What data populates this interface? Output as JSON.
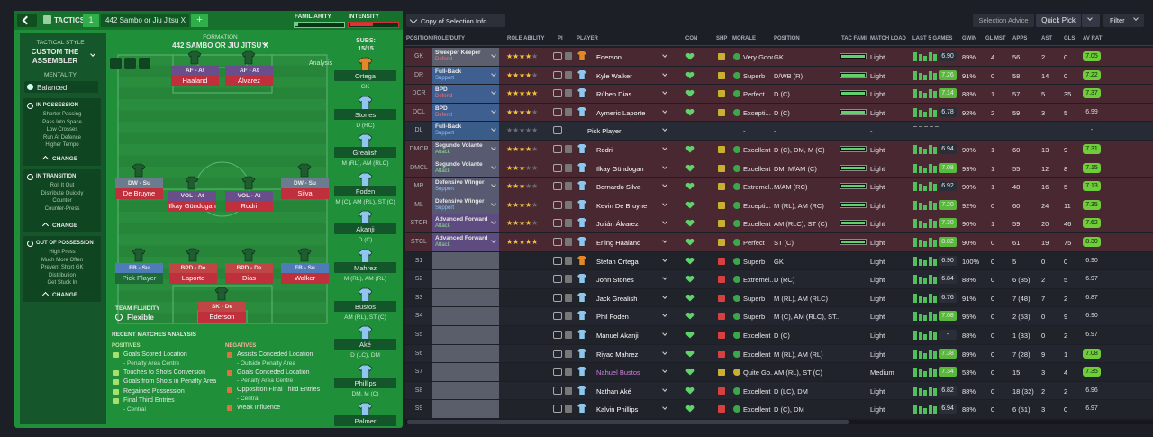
{
  "left_panel": {
    "top_bar": {
      "tab": "TACTICS",
      "slot": "1",
      "tactic_name": "442 Sambo or Jiu Jitsu X",
      "add": "+",
      "familiarity": "FAMILIARITY",
      "intensity": "INTENSITY"
    },
    "sidebar": {
      "style_label": "TACTICAL STYLE",
      "style_name": "CUSTOM THE ASSEMBLER",
      "mentality_label": "MENTALITY",
      "mentality": "Balanced",
      "sections": [
        {
          "title": "IN POSSESSION",
          "items": [
            "Shorter Passing",
            "Pass Into Space",
            "Low Crosses",
            "Run At Defence",
            "Higher Tempo"
          ],
          "button": "CHANGE"
        },
        {
          "title": "IN TRANSITION",
          "items": [
            "Roll It Out",
            "Distribute Quickly",
            "Counter",
            "Counter-Press"
          ],
          "button": "CHANGE"
        },
        {
          "title": "OUT OF POSSESSION",
          "items": [
            "High Press",
            "Much More Often",
            "Prevent Short GK",
            "Distribution",
            "Get Stuck In"
          ],
          "button": "CHANGE"
        }
      ]
    },
    "pitch": {
      "formation_label": "FORMATION",
      "formation": "442 SAMBO OR JIU JITSU X",
      "analysis": "Analysis",
      "players": [
        {
          "role": "AF - At",
          "name": "Haaland"
        },
        {
          "role": "AF - At",
          "name": "Álvarez"
        },
        {
          "role": "DW - Su",
          "name": "De Bruyne"
        },
        {
          "role": "VOL - At",
          "name": "Ilkay Gündogan"
        },
        {
          "role": "VOL - At",
          "name": "Rodri"
        },
        {
          "role": "DW - Su",
          "name": "Silva"
        },
        {
          "role": "FB - Su",
          "name": "Pick Player"
        },
        {
          "role": "BPD - De",
          "name": "Laporte"
        },
        {
          "role": "BPD - De",
          "name": "Dias"
        },
        {
          "role": "FB - Su",
          "name": "Walker"
        },
        {
          "role": "SK - De",
          "name": "Ederson"
        }
      ],
      "fluidity_label": "TEAM FLUIDITY",
      "fluidity": "Flexible"
    },
    "subs": {
      "label": "SUBS:",
      "count": "15/15",
      "players": [
        {
          "name": "Ortega",
          "position": "GK"
        },
        {
          "name": "Stones",
          "position": "D (RC)"
        },
        {
          "name": "Grealish",
          "position": "M (RL), AM (RLC)"
        },
        {
          "name": "Foden",
          "position": "M (C), AM (RL), ST (C)"
        },
        {
          "name": "Akanji",
          "position": "D (C)"
        },
        {
          "name": "Mahrez",
          "position": "M (RL), AM (RL)"
        },
        {
          "name": "Bustos",
          "position": "AM (RL), ST (C)"
        },
        {
          "name": "Aké",
          "position": "D (LC), DM"
        },
        {
          "name": "Phillips",
          "position": "DM, M (C)"
        },
        {
          "name": "Palmer"
        }
      ]
    },
    "analysis": {
      "title": "RECENT MATCHES ANALYSIS",
      "positives_label": "POSITIVES",
      "negatives_label": "NEGATIVES",
      "positives": [
        {
          "text": "Goals Scored Location",
          "detail": "- Penalty Area Centre"
        },
        {
          "text": "Touches to Shots Conversion"
        },
        {
          "text": "Goals from Shots in Penalty Area"
        },
        {
          "text": "Regained Possession"
        },
        {
          "text": "Final Third Entries",
          "detail": "- Central"
        }
      ],
      "negatives": [
        {
          "text": "Assists Conceded Location",
          "detail": "- Outside Penalty Area"
        },
        {
          "text": "Goals Conceded Location",
          "detail": "- Penalty Area Centre"
        },
        {
          "text": "Opposition Final Third Entries",
          "detail": "- Central"
        },
        {
          "text": "Weak Influence"
        }
      ]
    }
  },
  "selection": {
    "view": "Copy of Selection Info",
    "advice": "Selection Advice",
    "quick_pick": "Quick Pick",
    "filter": "Filter",
    "columns": [
      "POSITION/ROLE/DUTY",
      "ROLE ABILITY",
      "PI",
      "PLAYER",
      "CON",
      "SHP",
      "MORALE",
      "POSITION",
      "TAC FAMI",
      "MATCH LOAD",
      "LAST 5 GAMES",
      "GWIN",
      "GL MST",
      "APPS",
      "AST",
      "GLS",
      "AV RAT"
    ],
    "rows": [
      {
        "pos": "GK",
        "role": "Sweeper Keeper",
        "duty": "Defend",
        "stars": 4,
        "player": "Ederson",
        "morale": "Very Good",
        "position": "GK",
        "load": "Light",
        "rating": "6.90",
        "gwin": "89%",
        "glmst": "4",
        "apps": "56",
        "ast": "2",
        "gls": "0",
        "avrat": "7.05"
      },
      {
        "pos": "DR",
        "role": "Full-Back",
        "duty": "Support",
        "stars": 4,
        "player": "Kyle Walker",
        "morale": "Superb",
        "position": "D/WB (R)",
        "load": "Light",
        "rating": "7.26",
        "gwin": "91%",
        "glmst": "0",
        "apps": "58",
        "ast": "14",
        "gls": "0",
        "avrat": "7.22"
      },
      {
        "pos": "DCR",
        "role": "BPD",
        "duty": "Defend",
        "stars": 5,
        "player": "Rúben Dias",
        "morale": "Perfect",
        "position": "D (C)",
        "load": "Light",
        "rating": "7.14",
        "gwin": "88%",
        "glmst": "1",
        "apps": "57",
        "ast": "5",
        "gls": "35",
        "avrat": "7.37"
      },
      {
        "pos": "DCL",
        "role": "BPD",
        "duty": "Defend",
        "stars": 4,
        "player": "Aymeric Laporte",
        "morale": "Excepti...",
        "position": "D (C)",
        "load": "Light",
        "rating": "6.78",
        "gwin": "92%",
        "glmst": "2",
        "apps": "59",
        "ast": "3",
        "gls": "5",
        "avrat": "6.99"
      },
      {
        "pos": "DL",
        "role": "Full-Back",
        "duty": "Support",
        "stars": 0,
        "player": "Pick Player",
        "morale": "-",
        "position": "-",
        "load": "-",
        "avrat": "-"
      },
      {
        "pos": "DMCR",
        "role": "Segundo Volante",
        "duty": "Attack",
        "stars": 4,
        "player": "Rodri",
        "morale": "Excellent",
        "position": "D (C), DM, M (C)",
        "load": "Light",
        "rating": "6.94",
        "gwin": "90%",
        "glmst": "1",
        "apps": "60",
        "ast": "13",
        "gls": "9",
        "avrat": "7.31"
      },
      {
        "pos": "DMCL",
        "role": "Segundo Volante",
        "duty": "Attack",
        "stars": 3,
        "player": "Ilkay Gündogan",
        "morale": "Excellent",
        "position": "DM, M/AM (C)",
        "load": "Light",
        "rating": "7.08",
        "gwin": "93%",
        "glmst": "1",
        "apps": "55",
        "ast": "12",
        "gls": "8",
        "avrat": "7.15"
      },
      {
        "pos": "MR",
        "role": "Defensive Winger",
        "duty": "Support",
        "stars": 3,
        "player": "Bernardo Silva",
        "morale": "Extremel...",
        "position": "M/AM (RC)",
        "load": "Light",
        "rating": "6.92",
        "gwin": "90%",
        "glmst": "1",
        "apps": "48",
        "ast": "16",
        "gls": "5",
        "avrat": "7.13"
      },
      {
        "pos": "ML",
        "role": "Defensive Winger",
        "duty": "Support",
        "stars": 4,
        "player": "Kevin De Bruyne",
        "morale": "Excepti...",
        "position": "M (RL), AM (RC)",
        "load": "Light",
        "rating": "7.20",
        "gwin": "92%",
        "glmst": "0",
        "apps": "60",
        "ast": "24",
        "gls": "11",
        "avrat": "7.35"
      },
      {
        "pos": "STCR",
        "role": "Advanced Forward",
        "duty": "Attack",
        "stars": 4,
        "player": "Julián Álvarez",
        "morale": "Excellent",
        "position": "AM (RLC), ST (C)",
        "load": "Light",
        "rating": "7.30",
        "gwin": "90%",
        "glmst": "1",
        "apps": "59",
        "ast": "20",
        "gls": "46",
        "avrat": "7.62"
      },
      {
        "pos": "STCL",
        "role": "Advanced Forward",
        "duty": "Attack",
        "stars": 5,
        "player": "Erling Haaland",
        "morale": "Perfect",
        "position": "ST (C)",
        "load": "Light",
        "rating": "8.02",
        "gwin": "90%",
        "glmst": "0",
        "apps": "61",
        "ast": "19",
        "gls": "75",
        "avrat": "8.30"
      },
      {
        "pos": "S1",
        "player": "Stefan Ortega",
        "morale": "Superb",
        "position": "GK",
        "load": "Light",
        "rating": "6.90",
        "gwin": "100%",
        "glmst": "0",
        "apps": "5",
        "ast": "0",
        "gls": "0",
        "avrat": "6.90"
      },
      {
        "pos": "S2",
        "player": "John Stones",
        "morale": "Extremel...",
        "position": "D (RC)",
        "load": "Light",
        "rating": "6.84",
        "gwin": "88%",
        "glmst": "0",
        "apps": "6 (35)",
        "ast": "2",
        "gls": "5",
        "avrat": "6.97"
      },
      {
        "pos": "S3",
        "player": "Jack Grealish",
        "morale": "Superb",
        "position": "M (RL), AM (RLC)",
        "load": "Light",
        "rating": "6.76",
        "gwin": "91%",
        "glmst": "0",
        "apps": "7 (48)",
        "ast": "7",
        "gls": "2",
        "avrat": "6.87"
      },
      {
        "pos": "S4",
        "player": "Phil Foden",
        "morale": "Superb",
        "position": "M (C), AM (RLC), ST...",
        "load": "Light",
        "rating": "7.08",
        "gwin": "95%",
        "glmst": "0",
        "apps": "2 (53)",
        "ast": "0",
        "gls": "9",
        "avrat": "6.90"
      },
      {
        "pos": "S5",
        "player": "Manuel Akanji",
        "morale": "Excellent",
        "position": "D (C)",
        "load": "Light",
        "rating": "-",
        "gwin": "88%",
        "glmst": "0",
        "apps": "1 (33)",
        "ast": "0",
        "gls": "2",
        "avrat": "6.97"
      },
      {
        "pos": "S6",
        "player": "Riyad Mahrez",
        "morale": "Excellent",
        "position": "M (RL), AM (RL)",
        "load": "Light",
        "rating": "7.38",
        "gwin": "89%",
        "glmst": "0",
        "apps": "7 (28)",
        "ast": "9",
        "gls": "1",
        "avrat": "7.08"
      },
      {
        "pos": "S7",
        "player": "Nahuel Bustos",
        "morale": "Quite Go...",
        "position": "AM (RL), ST (C)",
        "load": "Medium",
        "rating": "7.34",
        "gwin": "53%",
        "glmst": "0",
        "apps": "15",
        "ast": "3",
        "gls": "4",
        "avrat": "7.35"
      },
      {
        "pos": "S8",
        "player": "Nathan Aké",
        "morale": "Excellent",
        "position": "D (LC), DM",
        "load": "Light",
        "rating": "6.82",
        "gwin": "88%",
        "glmst": "0",
        "apps": "18 (32)",
        "ast": "2",
        "gls": "2",
        "avrat": "6.96"
      },
      {
        "pos": "S9",
        "player": "Kalvin Phillips",
        "morale": "Excellent",
        "position": "D (C), DM",
        "load": "Light",
        "rating": "6.94",
        "gwin": "88%",
        "glmst": "0",
        "apps": "6 (51)",
        "ast": "3",
        "gls": "0",
        "avrat": "6.97"
      }
    ]
  }
}
